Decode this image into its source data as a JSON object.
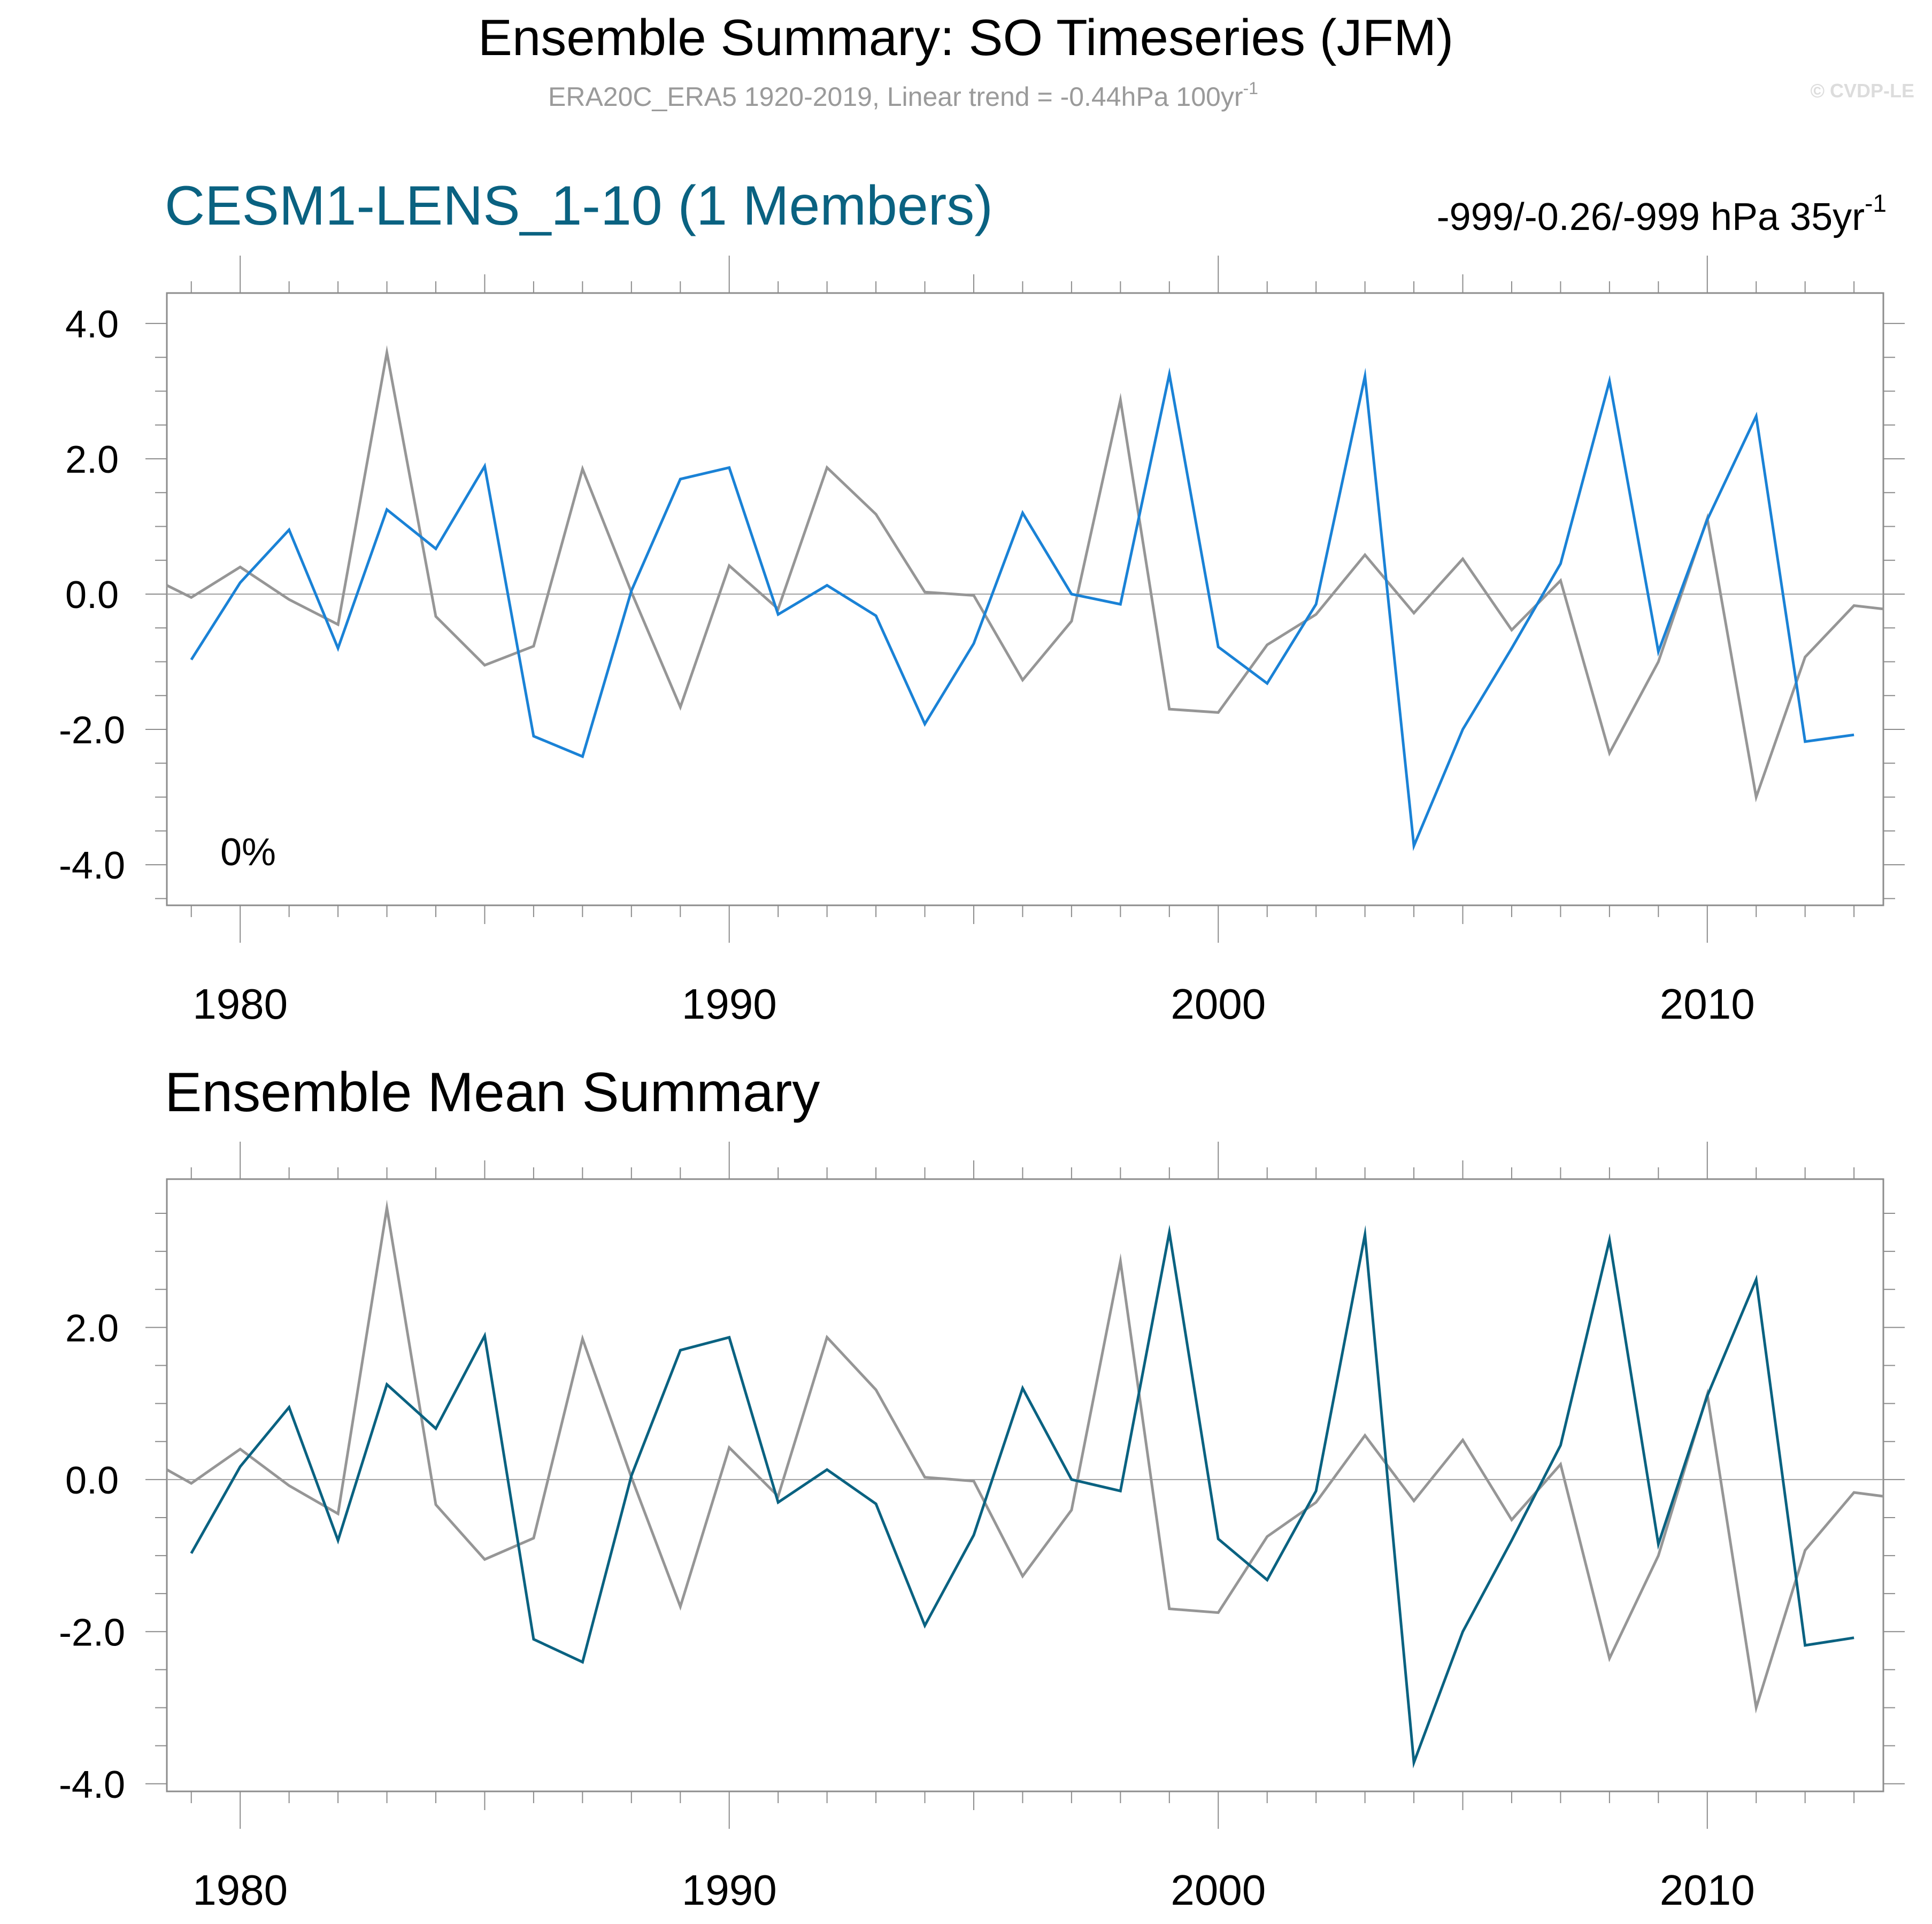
{
  "header": {
    "title": "Ensemble Summary: SO Timeseries (JFM)",
    "subtitle": "ERA20C_ERA5 1920-2019, Linear trend = -0.44hPa 100yr",
    "subtitle_sup": "-1",
    "watermark": "© CVDP-LE"
  },
  "panel1": {
    "title": "CESM1-LENS_1-10 (1 Members)",
    "title_color": "#0a6281",
    "trend_text": "-999/-0.26/-999 hPa 35yr",
    "trend_sup": "-1",
    "percent_label": "0%"
  },
  "panel2": {
    "title": "Ensemble Mean Summary"
  },
  "colors": {
    "observed": "#969696",
    "member": "#1a82d6",
    "ensemble_mean": "#0a6281",
    "frame": "#8c8c8c",
    "zero_line": "#a0a0a0"
  },
  "chart_data": [
    {
      "type": "line",
      "title": "CESM1-LENS_1-10 (1 Members)",
      "xlim": [
        1978.5,
        2013.6
      ],
      "ylim": [
        -4.6,
        4.45
      ],
      "yticks": [
        -4.0,
        -2.0,
        0.0,
        2.0,
        4.0
      ],
      "ytick_labels": [
        "-4.0",
        "-2.0",
        "0.0",
        "2.0",
        "4.0"
      ],
      "xticks": [
        1980,
        1990,
        2000,
        2010
      ],
      "xtick_labels": [
        "1980",
        "1990",
        "2000",
        "2010"
      ],
      "grid": false,
      "series": [
        {
          "role": "observed",
          "x": [
            1978.5,
            1979,
            1980,
            1981,
            1982,
            1983,
            1984,
            1985,
            1986,
            1987,
            1988,
            1989,
            1990,
            1991,
            1992,
            1993,
            1994,
            1995,
            1996,
            1997,
            1998,
            1999,
            2000,
            2001,
            2002,
            2003,
            2004,
            2005,
            2006,
            2007,
            2008,
            2009,
            2010,
            2011,
            2012,
            2013,
            2013.6
          ],
          "values": [
            0.13,
            -0.05,
            0.4,
            -0.08,
            -0.45,
            3.57,
            -0.33,
            -1.05,
            -0.77,
            1.85,
            0.03,
            -1.67,
            0.42,
            -0.22,
            1.87,
            1.18,
            0.03,
            -0.02,
            -1.27,
            -0.4,
            2.87,
            -1.7,
            -1.75,
            -0.75,
            -0.3,
            0.58,
            -0.28,
            0.52,
            -0.53,
            0.2,
            -2.35,
            -1.0,
            1.12,
            -3.0,
            -0.93,
            -0.17,
            -0.22
          ]
        },
        {
          "role": "member",
          "x": [
            1979,
            1980,
            1981,
            1982,
            1983,
            1984,
            1985,
            1986,
            1987,
            1988,
            1989,
            1990,
            1991,
            1992,
            1993,
            1994,
            1995,
            1996,
            1997,
            1998,
            1999,
            2000,
            2001,
            2002,
            2003,
            2004,
            2005,
            2006,
            2007,
            2008,
            2009,
            2010,
            2011,
            2012,
            2013
          ],
          "values": [
            -0.97,
            0.17,
            0.95,
            -0.8,
            1.25,
            0.67,
            1.89,
            -2.1,
            -2.4,
            0.05,
            1.7,
            1.87,
            -0.3,
            0.13,
            -0.32,
            -1.92,
            -0.73,
            1.2,
            0.0,
            -0.15,
            3.25,
            -0.78,
            -1.32,
            -0.15,
            3.22,
            -3.72,
            -2.0,
            -0.8,
            0.45,
            3.15,
            -0.85,
            1.1,
            2.63,
            -2.18,
            -2.08
          ]
        }
      ]
    },
    {
      "type": "line",
      "title": "Ensemble Mean Summary",
      "xlim": [
        1978.5,
        2013.6
      ],
      "ylim": [
        -4.1,
        3.95
      ],
      "yticks": [
        -4.0,
        -2.0,
        0.0,
        2.0
      ],
      "ytick_labels": [
        "-4.0",
        "-2.0",
        "0.0",
        "2.0"
      ],
      "xticks": [
        1980,
        1990,
        2000,
        2010
      ],
      "xtick_labels": [
        "1980",
        "1990",
        "2000",
        "2010"
      ],
      "grid": false,
      "series": [
        {
          "role": "observed",
          "x": [
            1978.5,
            1979,
            1980,
            1981,
            1982,
            1983,
            1984,
            1985,
            1986,
            1987,
            1988,
            1989,
            1990,
            1991,
            1992,
            1993,
            1994,
            1995,
            1996,
            1997,
            1998,
            1999,
            2000,
            2001,
            2002,
            2003,
            2004,
            2005,
            2006,
            2007,
            2008,
            2009,
            2010,
            2011,
            2012,
            2013,
            2013.6
          ],
          "values": [
            0.13,
            -0.05,
            0.4,
            -0.08,
            -0.45,
            3.57,
            -0.33,
            -1.05,
            -0.77,
            1.85,
            0.03,
            -1.67,
            0.42,
            -0.22,
            1.87,
            1.18,
            0.03,
            -0.02,
            -1.27,
            -0.4,
            2.87,
            -1.7,
            -1.75,
            -0.75,
            -0.3,
            0.58,
            -0.28,
            0.52,
            -0.53,
            0.2,
            -2.35,
            -1.0,
            1.12,
            -3.0,
            -0.93,
            -0.17,
            -0.22
          ]
        },
        {
          "role": "ensemble_mean",
          "x": [
            1979,
            1980,
            1981,
            1982,
            1983,
            1984,
            1985,
            1986,
            1987,
            1988,
            1989,
            1990,
            1991,
            1992,
            1993,
            1994,
            1995,
            1996,
            1997,
            1998,
            1999,
            2000,
            2001,
            2002,
            2003,
            2004,
            2005,
            2006,
            2007,
            2008,
            2009,
            2010,
            2011,
            2012,
            2013
          ],
          "values": [
            -0.97,
            0.17,
            0.95,
            -0.8,
            1.25,
            0.67,
            1.89,
            -2.1,
            -2.4,
            0.05,
            1.7,
            1.87,
            -0.3,
            0.13,
            -0.32,
            -1.92,
            -0.73,
            1.2,
            0.0,
            -0.15,
            3.25,
            -0.78,
            -1.32,
            -0.15,
            3.22,
            -3.72,
            -2.0,
            -0.8,
            0.45,
            3.15,
            -0.85,
            1.1,
            2.63,
            -2.18,
            -2.08
          ]
        }
      ]
    }
  ]
}
